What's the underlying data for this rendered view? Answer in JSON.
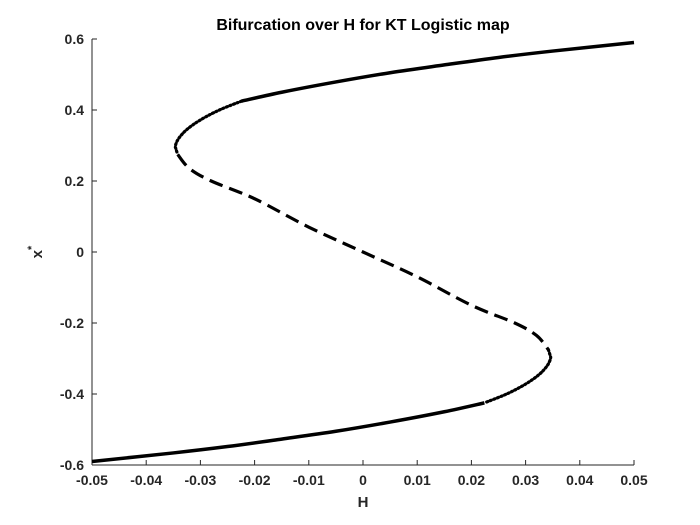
{
  "chart_data": {
    "type": "line",
    "title": "Bifurcation over H for KT Logistic map",
    "xlabel": "H",
    "ylabel": "x",
    "ylabel_superscript": "*",
    "xlim": [
      -0.05,
      0.05
    ],
    "ylim": [
      -0.6,
      0.6
    ],
    "x_ticks": [
      -0.05,
      -0.04,
      -0.03,
      -0.02,
      -0.01,
      0,
      0.01,
      0.02,
      0.03,
      0.04,
      0.05
    ],
    "x_tick_labels": [
      "-0.05",
      "-0.04",
      "-0.03",
      "-0.02",
      "-0.01",
      "0",
      "0.01",
      "0.02",
      "0.03",
      "0.04",
      "0.05"
    ],
    "y_ticks": [
      -0.6,
      -0.4,
      -0.2,
      0,
      0.2,
      0.4,
      0.6
    ],
    "y_tick_labels": [
      "-0.6",
      "-0.4",
      "-0.2",
      "0",
      "0.2",
      "0.4",
      "0.6"
    ],
    "grid": false,
    "series": [
      {
        "style": "solid",
        "color": "#000000",
        "points": [
          [
            -0.0224,
            0.425
          ],
          [
            -0.015,
            0.45
          ],
          [
            -0.005,
            0.479
          ],
          [
            0.005,
            0.505
          ],
          [
            0.015,
            0.527
          ],
          [
            0.025,
            0.548
          ],
          [
            0.035,
            0.566
          ],
          [
            0.05,
            0.59
          ]
        ]
      },
      {
        "style": "dotted",
        "color": "#000000",
        "points": [
          [
            -0.0224,
            0.425
          ],
          [
            -0.0265,
            0.4
          ],
          [
            -0.03,
            0.372
          ],
          [
            -0.0325,
            0.345
          ],
          [
            -0.034,
            0.32
          ],
          [
            -0.0346,
            0.3
          ],
          [
            -0.0345,
            0.29
          ],
          [
            -0.0342,
            0.275
          ]
        ]
      },
      {
        "style": "dashed",
        "color": "#000000",
        "points": [
          [
            -0.0342,
            0.275
          ],
          [
            -0.032,
            0.235
          ],
          [
            -0.028,
            0.2
          ],
          [
            -0.02,
            0.15
          ],
          [
            -0.01,
            0.07
          ],
          [
            0,
            0
          ],
          [
            0.01,
            -0.07
          ],
          [
            0.02,
            -0.15
          ],
          [
            0.028,
            -0.2
          ],
          [
            0.032,
            -0.235
          ],
          [
            0.0342,
            -0.275
          ]
        ]
      },
      {
        "style": "dotted",
        "color": "#000000",
        "points": [
          [
            0.0342,
            -0.275
          ],
          [
            0.0345,
            -0.29
          ],
          [
            0.0346,
            -0.3
          ],
          [
            0.034,
            -0.32
          ],
          [
            0.0325,
            -0.345
          ],
          [
            0.03,
            -0.372
          ],
          [
            0.0265,
            -0.4
          ],
          [
            0.0224,
            -0.425
          ]
        ]
      },
      {
        "style": "solid",
        "color": "#000000",
        "points": [
          [
            0.0224,
            -0.425
          ],
          [
            0.015,
            -0.45
          ],
          [
            0.005,
            -0.479
          ],
          [
            -0.005,
            -0.505
          ],
          [
            -0.015,
            -0.527
          ],
          [
            -0.025,
            -0.548
          ],
          [
            -0.035,
            -0.566
          ],
          [
            -0.05,
            -0.59
          ]
        ]
      }
    ]
  }
}
